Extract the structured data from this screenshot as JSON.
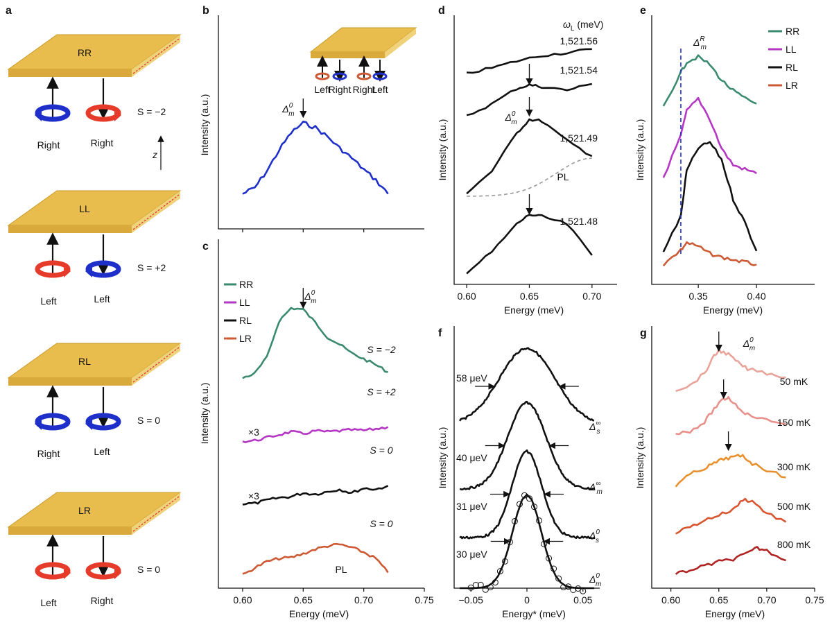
{
  "panel_labels": {
    "a": "a",
    "b": "b",
    "c": "c",
    "d": "d",
    "e": "e",
    "f": "f",
    "g": "g"
  },
  "panel_a": {
    "z_label": "z",
    "rows": [
      {
        "plate": "RR",
        "left_hand": "Right",
        "right_hand": "Right",
        "spin": "S = −2",
        "left_color": "#1f2fc9",
        "right_color": "#e63a2a"
      },
      {
        "plate": "LL",
        "left_hand": "Left",
        "right_hand": "Left",
        "spin": "S = +2",
        "left_color": "#e63a2a",
        "right_color": "#1f2fc9"
      },
      {
        "plate": "RL",
        "left_hand": "Right",
        "right_hand": "Left",
        "spin": "S = 0",
        "left_color": "#1f2fc9",
        "right_color": "#1f2fc9"
      },
      {
        "plate": "LR",
        "left_hand": "Left",
        "right_hand": "Right",
        "spin": "S = 0",
        "left_color": "#e63a2a",
        "right_color": "#e63a2a"
      }
    ]
  },
  "colors": {
    "RR": "#3a8a6e",
    "LL": "#b535c4",
    "RL": "#111111",
    "LR": "#cc5a34",
    "blue": "#1f2fc9",
    "dashed_blue": "#2233cc",
    "pl_dashed": "#999999"
  },
  "chart_data": [
    {
      "id": "b",
      "type": "line",
      "title": "",
      "xlabel": "",
      "ylabel": "Intensity (a.u.)",
      "xlim": [
        0.58,
        0.75
      ],
      "annotation": "Δm0 arrow at 0.65",
      "marker_label": {
        "base": "Δ",
        "sup": "0",
        "sub": "m"
      },
      "inset_labels": [
        "Left",
        "Right",
        "Right",
        "Left"
      ],
      "series": [
        {
          "name": "b",
          "x": [
            0.6,
            0.61,
            0.62,
            0.63,
            0.64,
            0.65,
            0.66,
            0.67,
            0.68,
            0.69,
            0.7,
            0.71,
            0.72
          ],
          "y": [
            0.05,
            0.13,
            0.35,
            0.62,
            0.85,
            0.98,
            0.92,
            0.8,
            0.65,
            0.52,
            0.37,
            0.23,
            0.05
          ]
        }
      ]
    },
    {
      "id": "c",
      "type": "line",
      "xlabel": "Energy (meV)",
      "ylabel": "Intensity (a.u.)",
      "xlim": [
        0.58,
        0.75
      ],
      "xticks": [
        "0.60",
        "0.65",
        "0.70",
        "0.75"
      ],
      "marker_label": {
        "base": "Δ",
        "sup": "0",
        "sub": "m"
      },
      "legend": [
        "RR",
        "LL",
        "RL",
        "LR"
      ],
      "series": [
        {
          "name": "RR",
          "label": "S = −2",
          "x": [
            0.6,
            0.61,
            0.62,
            0.63,
            0.64,
            0.65,
            0.66,
            0.67,
            0.68,
            0.69,
            0.7,
            0.71,
            0.72
          ],
          "y": [
            0.02,
            0.08,
            0.3,
            0.8,
            0.98,
            0.96,
            0.78,
            0.58,
            0.48,
            0.36,
            0.28,
            0.2,
            0.1
          ]
        },
        {
          "name": "LL",
          "label": "S = +2",
          "note": "×3",
          "x": [
            0.6,
            0.61,
            0.62,
            0.63,
            0.64,
            0.65,
            0.66,
            0.67,
            0.68,
            0.69,
            0.7,
            0.71,
            0.72
          ],
          "y": [
            0.05,
            0.1,
            0.25,
            0.4,
            0.55,
            0.45,
            0.6,
            0.55,
            0.6,
            0.65,
            0.62,
            0.7,
            0.8
          ]
        },
        {
          "name": "RL",
          "label": "S = 0",
          "note": "×3",
          "x": [
            0.6,
            0.61,
            0.62,
            0.63,
            0.64,
            0.65,
            0.66,
            0.67,
            0.68,
            0.69,
            0.7,
            0.71,
            0.72
          ],
          "y": [
            0.1,
            0.12,
            0.25,
            0.35,
            0.4,
            0.55,
            0.5,
            0.6,
            0.7,
            0.55,
            0.75,
            0.7,
            0.85
          ]
        },
        {
          "name": "LR",
          "label": "S = 0",
          "note": "PL",
          "x": [
            0.6,
            0.61,
            0.62,
            0.63,
            0.64,
            0.65,
            0.66,
            0.67,
            0.68,
            0.69,
            0.7,
            0.71,
            0.72
          ],
          "y": [
            0.02,
            0.25,
            0.45,
            0.55,
            0.58,
            0.7,
            0.85,
            0.95,
            1.0,
            0.9,
            0.75,
            0.55,
            0.1
          ]
        }
      ]
    },
    {
      "id": "d",
      "type": "line",
      "xlabel": "Energy (meV)",
      "ylabel": "Intensity (a.u.)",
      "xlim": [
        0.59,
        0.72
      ],
      "xticks": [
        "0.60",
        "0.65",
        "0.70"
      ],
      "legend_title": {
        "base": "ω",
        "sub": "L",
        "unit": " (meV)"
      },
      "marker_label": {
        "base": "Δ",
        "sup": "0",
        "sub": "m"
      },
      "pl_label": "PL",
      "series": [
        {
          "name": "1,521.56",
          "x": [
            0.6,
            0.62,
            0.64,
            0.66,
            0.68,
            0.7
          ],
          "y": [
            0.1,
            0.3,
            0.55,
            0.75,
            0.85,
            0.98
          ]
        },
        {
          "name": "1,521.54",
          "x": [
            0.6,
            0.62,
            0.64,
            0.65,
            0.66,
            0.68,
            0.7
          ],
          "y": [
            0.05,
            0.4,
            0.85,
            0.95,
            0.9,
            0.8,
            0.98
          ]
        },
        {
          "name": "1,521.49",
          "x": [
            0.6,
            0.62,
            0.64,
            0.65,
            0.66,
            0.68,
            0.7
          ],
          "y": [
            0.02,
            0.3,
            0.8,
            0.98,
            0.96,
            0.7,
            0.5
          ]
        },
        {
          "name": "1,521.48",
          "x": [
            0.6,
            0.62,
            0.64,
            0.65,
            0.66,
            0.68,
            0.7
          ],
          "y": [
            0.02,
            0.35,
            0.8,
            0.95,
            0.92,
            0.8,
            0.3
          ]
        }
      ]
    },
    {
      "id": "e",
      "type": "line",
      "xlabel": "Energy (meV)",
      "ylabel": "Intensity (a.u.)",
      "xlim": [
        0.31,
        0.45
      ],
      "xticks": [
        "0.35",
        "0.40"
      ],
      "marker_label": {
        "base": "Δ",
        "sup": "R",
        "sub": "m"
      },
      "vline_x": 0.335,
      "legend": [
        "RR",
        "LL",
        "RL",
        "LR"
      ],
      "series": [
        {
          "name": "RR",
          "x": [
            0.32,
            0.335,
            0.34,
            0.35,
            0.36,
            0.37,
            0.38,
            0.39,
            0.4
          ],
          "y": [
            0.05,
            0.7,
            0.9,
            1.0,
            0.85,
            0.55,
            0.35,
            0.2,
            0.1
          ]
        },
        {
          "name": "LL",
          "x": [
            0.32,
            0.335,
            0.34,
            0.35,
            0.36,
            0.37,
            0.38,
            0.39,
            0.4
          ],
          "y": [
            0.05,
            0.55,
            0.85,
            1.0,
            0.75,
            0.4,
            0.2,
            0.15,
            0.1
          ]
        },
        {
          "name": "RL",
          "x": [
            0.32,
            0.335,
            0.34,
            0.35,
            0.36,
            0.37,
            0.38,
            0.39,
            0.4
          ],
          "y": [
            0.05,
            0.35,
            0.75,
            0.95,
            1.0,
            0.85,
            0.5,
            0.3,
            0.05
          ]
        },
        {
          "name": "LR",
          "x": [
            0.32,
            0.335,
            0.34,
            0.35,
            0.36,
            0.37,
            0.38,
            0.39,
            0.4
          ],
          "y": [
            0.1,
            0.7,
            1.0,
            0.85,
            0.55,
            0.4,
            0.3,
            0.2,
            0.1
          ]
        }
      ]
    },
    {
      "id": "f",
      "type": "line",
      "xlabel": "Energy* (meV)",
      "ylabel": "Intensity (a.u.)",
      "xlim": [
        -0.065,
        0.065
      ],
      "xticks": [
        "−0.05",
        "0",
        "0.05"
      ],
      "series": [
        {
          "name": "Δs∞",
          "width_label": "58 μeV",
          "label": {
            "base": "Δ",
            "sup": "∞",
            "sub": "s"
          },
          "fwhm_meV": 0.058
        },
        {
          "name": "Δm∞",
          "width_label": "40 μeV",
          "label": {
            "base": "Δ",
            "sup": "∞",
            "sub": "m"
          },
          "fwhm_meV": 0.04
        },
        {
          "name": "Δs0",
          "width_label": "31 μeV",
          "label": {
            "base": "Δ",
            "sup": "0",
            "sub": "s"
          },
          "fwhm_meV": 0.031
        },
        {
          "name": "Δm0",
          "width_label": "30 μeV",
          "label": {
            "base": "Δ",
            "sup": "0",
            "sub": "m"
          },
          "fwhm_meV": 0.03,
          "with_open_circles": true
        }
      ]
    },
    {
      "id": "g",
      "type": "line",
      "xlabel": "Energy (meV)",
      "ylabel": "Intensity (a.u.)",
      "xlim": [
        0.58,
        0.75
      ],
      "xticks": [
        "0.60",
        "0.65",
        "0.70",
        "0.75"
      ],
      "marker_label": {
        "base": "Δ",
        "sup": "0",
        "sub": "m"
      },
      "series": [
        {
          "name": "50 mK",
          "color": "#e8a39a",
          "x": [
            0.605,
            0.62,
            0.635,
            0.645,
            0.65,
            0.66,
            0.67,
            0.68,
            0.7,
            0.72
          ],
          "y": [
            0.05,
            0.15,
            0.45,
            0.85,
            1.0,
            0.9,
            0.7,
            0.55,
            0.45,
            0.35
          ]
        },
        {
          "name": "150 mK",
          "color": "#e8908a",
          "x": [
            0.605,
            0.62,
            0.635,
            0.645,
            0.655,
            0.66,
            0.67,
            0.68,
            0.7,
            0.72
          ],
          "y": [
            0.05,
            0.12,
            0.35,
            0.7,
            0.95,
            1.0,
            0.75,
            0.55,
            0.4,
            0.3
          ]
        },
        {
          "name": "300 mK",
          "color": "#e8902e",
          "x": [
            0.605,
            0.62,
            0.635,
            0.645,
            0.655,
            0.665,
            0.675,
            0.685,
            0.7,
            0.72
          ],
          "y": [
            0.05,
            0.4,
            0.6,
            0.75,
            0.9,
            0.95,
            1.0,
            0.75,
            0.55,
            0.3
          ]
        },
        {
          "name": "500 mK",
          "color": "#d85530",
          "x": [
            0.605,
            0.62,
            0.635,
            0.65,
            0.665,
            0.675,
            0.685,
            0.7,
            0.72
          ],
          "y": [
            0.05,
            0.2,
            0.4,
            0.55,
            0.7,
            1.0,
            0.95,
            0.6,
            0.35
          ]
        },
        {
          "name": "800 mK",
          "color": "#b02424",
          "x": [
            0.605,
            0.62,
            0.635,
            0.65,
            0.665,
            0.68,
            0.69,
            0.7,
            0.72
          ],
          "y": [
            0.05,
            0.2,
            0.35,
            0.5,
            0.6,
            0.8,
            1.0,
            0.9,
            0.55
          ]
        }
      ]
    }
  ]
}
